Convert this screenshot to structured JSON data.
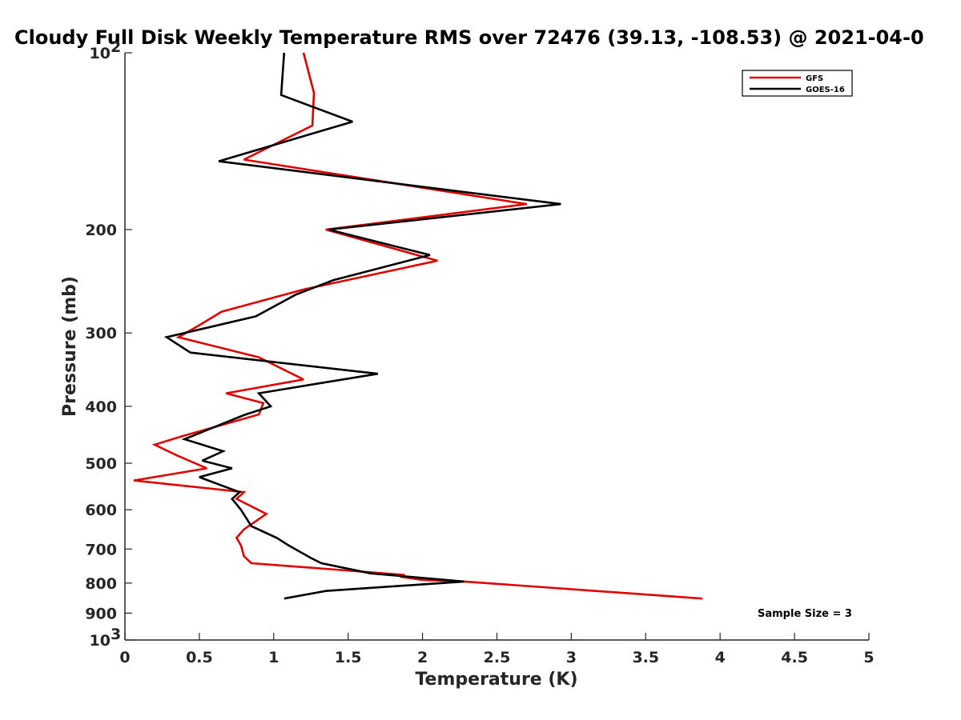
{
  "chart_data": {
    "type": "line",
    "title": "Cloudy Full Disk Weekly Temperature RMS over 72476 (39.13, -108.53) @ 2021-04-0",
    "xlabel": "Temperature (K)",
    "ylabel": "Pressure (mb)",
    "xlim": [
      0,
      5
    ],
    "ylim": [
      100,
      1000
    ],
    "y_scale": "log",
    "y_reversed": true,
    "x_ticks": [
      "0",
      "0.5",
      "1",
      "1.5",
      "2",
      "2.5",
      "3",
      "3.5",
      "4",
      "4.5",
      "5"
    ],
    "y_ticks": [
      {
        "value": 100,
        "label": "10",
        "sup": "2"
      },
      {
        "value": 200,
        "label": "200",
        "sup": ""
      },
      {
        "value": 300,
        "label": "300",
        "sup": ""
      },
      {
        "value": 400,
        "label": "400",
        "sup": ""
      },
      {
        "value": 500,
        "label": "500",
        "sup": ""
      },
      {
        "value": 600,
        "label": "600",
        "sup": ""
      },
      {
        "value": 700,
        "label": "700",
        "sup": ""
      },
      {
        "value": 800,
        "label": "800",
        "sup": ""
      },
      {
        "value": 900,
        "label": "900",
        "sup": ""
      },
      {
        "value": 1000,
        "label": "10",
        "sup": "3"
      }
    ],
    "grid": false,
    "legend_position": "top-right",
    "annotation": "Sample Size = 3",
    "series": [
      {
        "name": "GFS",
        "color": "#e00000",
        "points": [
          [
            1.2,
            100
          ],
          [
            1.27,
            117
          ],
          [
            1.26,
            133
          ],
          [
            0.8,
            152
          ],
          [
            2.7,
            181
          ],
          [
            1.35,
            200
          ],
          [
            2.1,
            226
          ],
          [
            1.2,
            253
          ],
          [
            0.65,
            276
          ],
          [
            0.5,
            291
          ],
          [
            0.36,
            305
          ],
          [
            0.9,
            330
          ],
          [
            1.2,
            360
          ],
          [
            0.68,
            380
          ],
          [
            0.93,
            395
          ],
          [
            0.9,
            413
          ],
          [
            0.38,
            450
          ],
          [
            0.2,
            465
          ],
          [
            0.35,
            485
          ],
          [
            0.55,
            510
          ],
          [
            0.06,
            535
          ],
          [
            0.8,
            560
          ],
          [
            0.75,
            575
          ],
          [
            0.95,
            610
          ],
          [
            0.8,
            648
          ],
          [
            0.75,
            670
          ],
          [
            0.78,
            690
          ],
          [
            0.8,
            720
          ],
          [
            0.85,
            740
          ],
          [
            1.45,
            760
          ],
          [
            1.88,
            775
          ],
          [
            1.85,
            780
          ],
          [
            2.0,
            790
          ],
          [
            2.28,
            795
          ],
          [
            3.88,
            850
          ]
        ]
      },
      {
        "name": "GOES-16",
        "color": "#000000",
        "points": [
          [
            1.07,
            100
          ],
          [
            1.05,
            118
          ],
          [
            1.53,
            131
          ],
          [
            0.63,
            153
          ],
          [
            2.93,
            181
          ],
          [
            1.37,
            200
          ],
          [
            2.05,
            221
          ],
          [
            1.4,
            244
          ],
          [
            1.15,
            258
          ],
          [
            0.88,
            281
          ],
          [
            0.28,
            305
          ],
          [
            0.44,
            324
          ],
          [
            1.7,
            352
          ],
          [
            0.9,
            380
          ],
          [
            0.98,
            400
          ],
          [
            0.8,
            414
          ],
          [
            0.4,
            455
          ],
          [
            0.66,
            477
          ],
          [
            0.52,
            495
          ],
          [
            0.72,
            510
          ],
          [
            0.5,
            528
          ],
          [
            0.77,
            560
          ],
          [
            0.72,
            575
          ],
          [
            0.78,
            600
          ],
          [
            0.85,
            640
          ],
          [
            1.02,
            670
          ],
          [
            1.1,
            690
          ],
          [
            1.25,
            725
          ],
          [
            1.32,
            740
          ],
          [
            1.65,
            770
          ],
          [
            2.28,
            795
          ],
          [
            1.35,
            825
          ],
          [
            1.07,
            850
          ]
        ]
      }
    ]
  }
}
